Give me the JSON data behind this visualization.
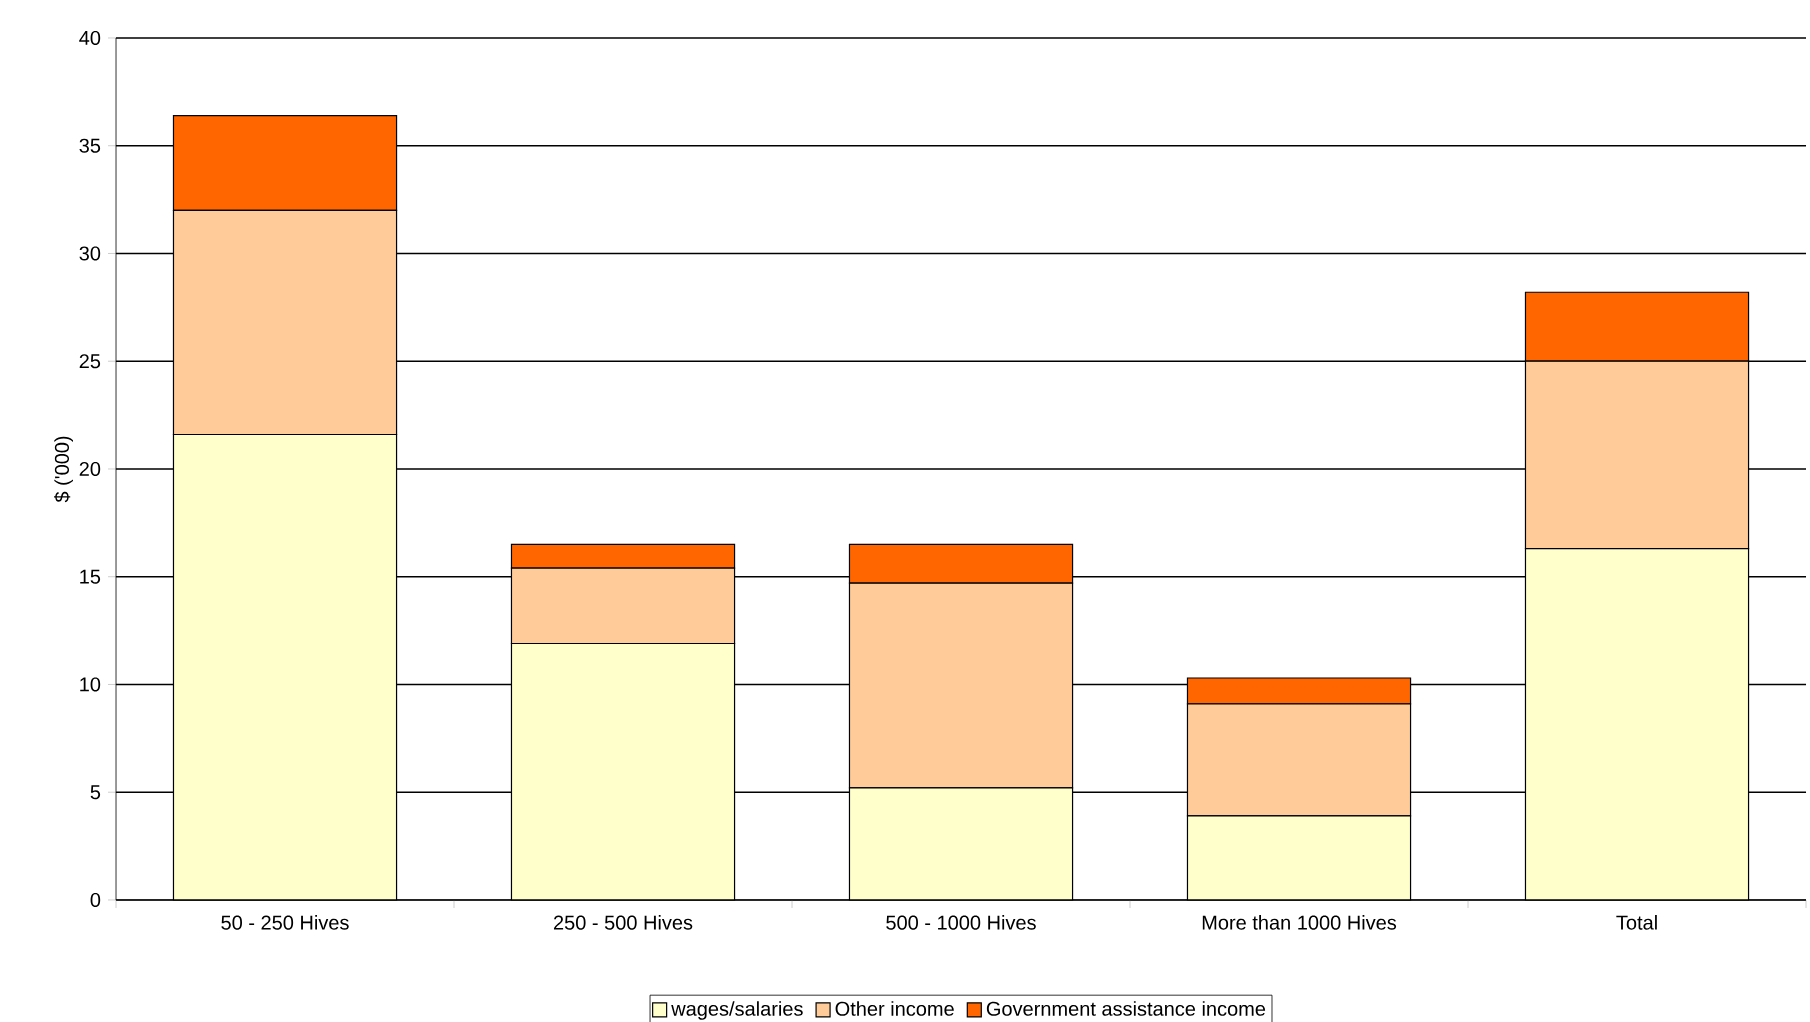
{
  "chart_data": {
    "type": "bar",
    "stacked": true,
    "ylabel": "$ ('000)",
    "categories": [
      "50 - 250 Hives",
      "250 - 500 Hives",
      "500 - 1000 Hives",
      "More than 1000 Hives",
      "Total"
    ],
    "series": [
      {
        "name": "wages/salaries",
        "color": "#ffffcc",
        "values": [
          21.6,
          11.9,
          5.2,
          3.9,
          16.3
        ]
      },
      {
        "name": "Other income",
        "color": "#ffcc99",
        "values": [
          10.4,
          3.5,
          9.5,
          5.2,
          8.7
        ]
      },
      {
        "name": "Government assistance income",
        "color": "#ff6600",
        "values": [
          4.4,
          1.1,
          1.8,
          1.2,
          3.2
        ]
      }
    ],
    "ylim": [
      0,
      40
    ],
    "yticks": [
      0,
      5,
      10,
      15,
      20,
      25,
      30,
      35,
      40
    ],
    "grid": "y",
    "legend": "bottom"
  }
}
